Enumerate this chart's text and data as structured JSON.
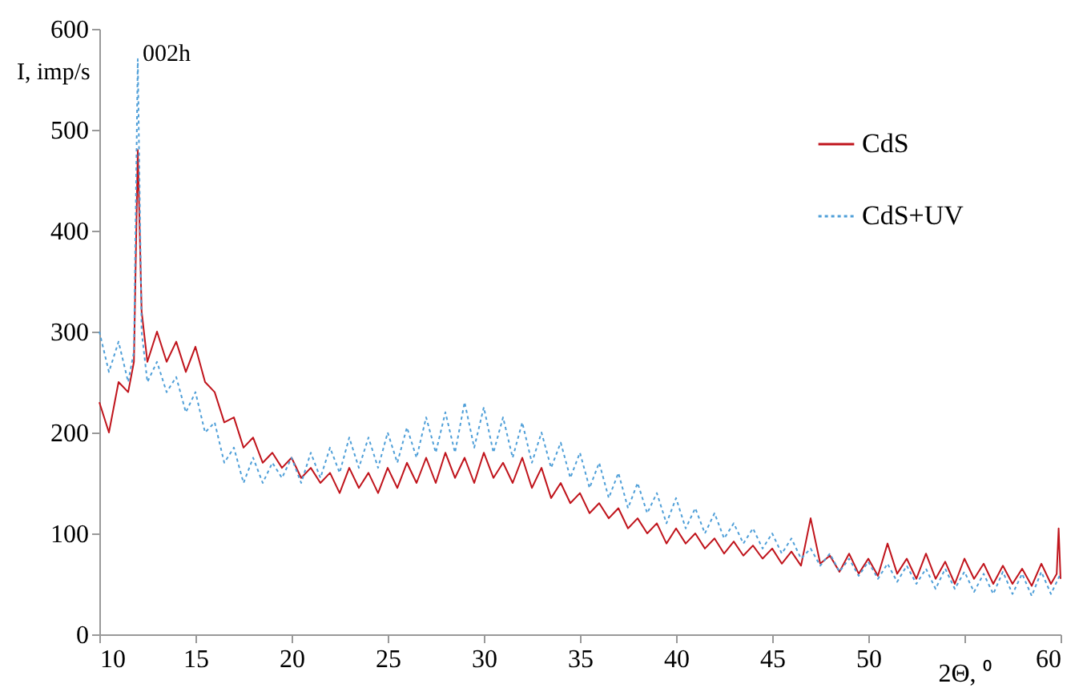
{
  "chart_data": {
    "type": "line",
    "xlabel": "2Θ, ⁰",
    "ylabel": "I, imp/s",
    "xlim": [
      10,
      60
    ],
    "xticks": [
      10,
      15,
      20,
      25,
      30,
      35,
      40,
      45,
      50,
      {
        "value": 55,
        "label": null
      },
      60
    ],
    "ylim": [
      0,
      600
    ],
    "yticks": [
      0,
      100,
      200,
      300,
      400,
      500,
      600
    ],
    "grid": false,
    "legend": "top right",
    "marker": "none",
    "annotations": [
      {
        "text": "002h",
        "x": 12,
        "y": 570
      }
    ],
    "series": [
      {
        "name": "CdS",
        "color": "#c0141c",
        "line_style": "solid",
        "x": [
          10,
          10.5,
          11,
          11.5,
          11.8,
          12,
          12.2,
          12.5,
          13,
          13.5,
          14,
          14.5,
          15,
          15.5,
          16,
          16.5,
          17,
          17.5,
          18,
          18.5,
          19,
          19.5,
          20,
          20.5,
          21,
          21.5,
          22,
          22.5,
          23,
          23.5,
          24,
          24.5,
          25,
          25.5,
          26,
          26.5,
          27,
          27.5,
          28,
          28.5,
          29,
          29.5,
          30,
          30.5,
          31,
          31.5,
          32,
          32.5,
          33,
          33.5,
          34,
          34.5,
          35,
          35.5,
          36,
          36.5,
          37,
          37.5,
          38,
          38.5,
          39,
          39.5,
          40,
          40.5,
          41,
          41.5,
          42,
          42.5,
          43,
          43.5,
          44,
          44.5,
          45,
          45.5,
          46,
          46.5,
          47,
          47.5,
          48,
          48.5,
          49,
          49.5,
          50,
          50.5,
          51,
          51.5,
          52,
          52.5,
          53,
          53.5,
          54,
          54.5,
          55,
          55.5,
          56,
          56.5,
          57,
          57.5,
          58,
          58.5,
          59,
          59.5,
          59.8,
          59.9,
          60
        ],
        "values": [
          230,
          200,
          250,
          240,
          270,
          480,
          320,
          270,
          300,
          270,
          290,
          260,
          285,
          250,
          240,
          210,
          215,
          185,
          195,
          170,
          180,
          165,
          175,
          155,
          165,
          150,
          160,
          140,
          165,
          145,
          160,
          140,
          165,
          145,
          170,
          150,
          175,
          150,
          180,
          155,
          175,
          150,
          180,
          155,
          170,
          150,
          175,
          145,
          165,
          135,
          150,
          130,
          140,
          120,
          130,
          115,
          125,
          105,
          115,
          100,
          110,
          90,
          105,
          90,
          100,
          85,
          95,
          80,
          92,
          78,
          88,
          75,
          85,
          70,
          82,
          68,
          115,
          70,
          78,
          62,
          80,
          60,
          75,
          58,
          90,
          60,
          75,
          55,
          80,
          55,
          72,
          50,
          75,
          55,
          70,
          50,
          68,
          50,
          65,
          48,
          70,
          50,
          60,
          105,
          55
        ]
      },
      {
        "name": "CdS+UV",
        "color": "#4f9fd8",
        "line_style": "dotted",
        "x": [
          10,
          10.5,
          11,
          11.5,
          11.8,
          12,
          12.2,
          12.5,
          13,
          13.5,
          14,
          14.5,
          15,
          15.5,
          16,
          16.5,
          17,
          17.5,
          18,
          18.5,
          19,
          19.5,
          20,
          20.5,
          21,
          21.5,
          22,
          22.5,
          23,
          23.5,
          24,
          24.5,
          25,
          25.5,
          26,
          26.5,
          27,
          27.5,
          28,
          28.5,
          29,
          29.5,
          30,
          30.5,
          31,
          31.5,
          32,
          32.5,
          33,
          33.5,
          34,
          34.5,
          35,
          35.5,
          36,
          36.5,
          37,
          37.5,
          38,
          38.5,
          39,
          39.5,
          40,
          40.5,
          41,
          41.5,
          42,
          42.5,
          43,
          43.5,
          44,
          44.5,
          45,
          45.5,
          46,
          46.5,
          47,
          47.5,
          48,
          48.5,
          49,
          49.5,
          50,
          50.5,
          51,
          51.5,
          52,
          52.5,
          53,
          53.5,
          54,
          54.5,
          55,
          55.5,
          56,
          56.5,
          57,
          57.5,
          58,
          58.5,
          59,
          59.5,
          60
        ],
        "values": [
          300,
          260,
          290,
          250,
          280,
          570,
          300,
          250,
          270,
          240,
          255,
          220,
          240,
          200,
          210,
          170,
          185,
          150,
          175,
          150,
          170,
          155,
          175,
          150,
          180,
          155,
          185,
          160,
          195,
          165,
          195,
          165,
          200,
          170,
          205,
          175,
          215,
          180,
          220,
          180,
          230,
          185,
          225,
          180,
          215,
          175,
          210,
          170,
          200,
          165,
          190,
          155,
          180,
          145,
          170,
          135,
          160,
          125,
          150,
          120,
          140,
          110,
          135,
          105,
          125,
          100,
          120,
          95,
          110,
          90,
          105,
          85,
          100,
          80,
          95,
          75,
          85,
          68,
          80,
          62,
          75,
          58,
          72,
          55,
          70,
          52,
          68,
          50,
          65,
          45,
          65,
          45,
          62,
          42,
          60,
          40,
          62,
          40,
          60,
          38,
          62,
          40,
          60
        ]
      }
    ]
  }
}
